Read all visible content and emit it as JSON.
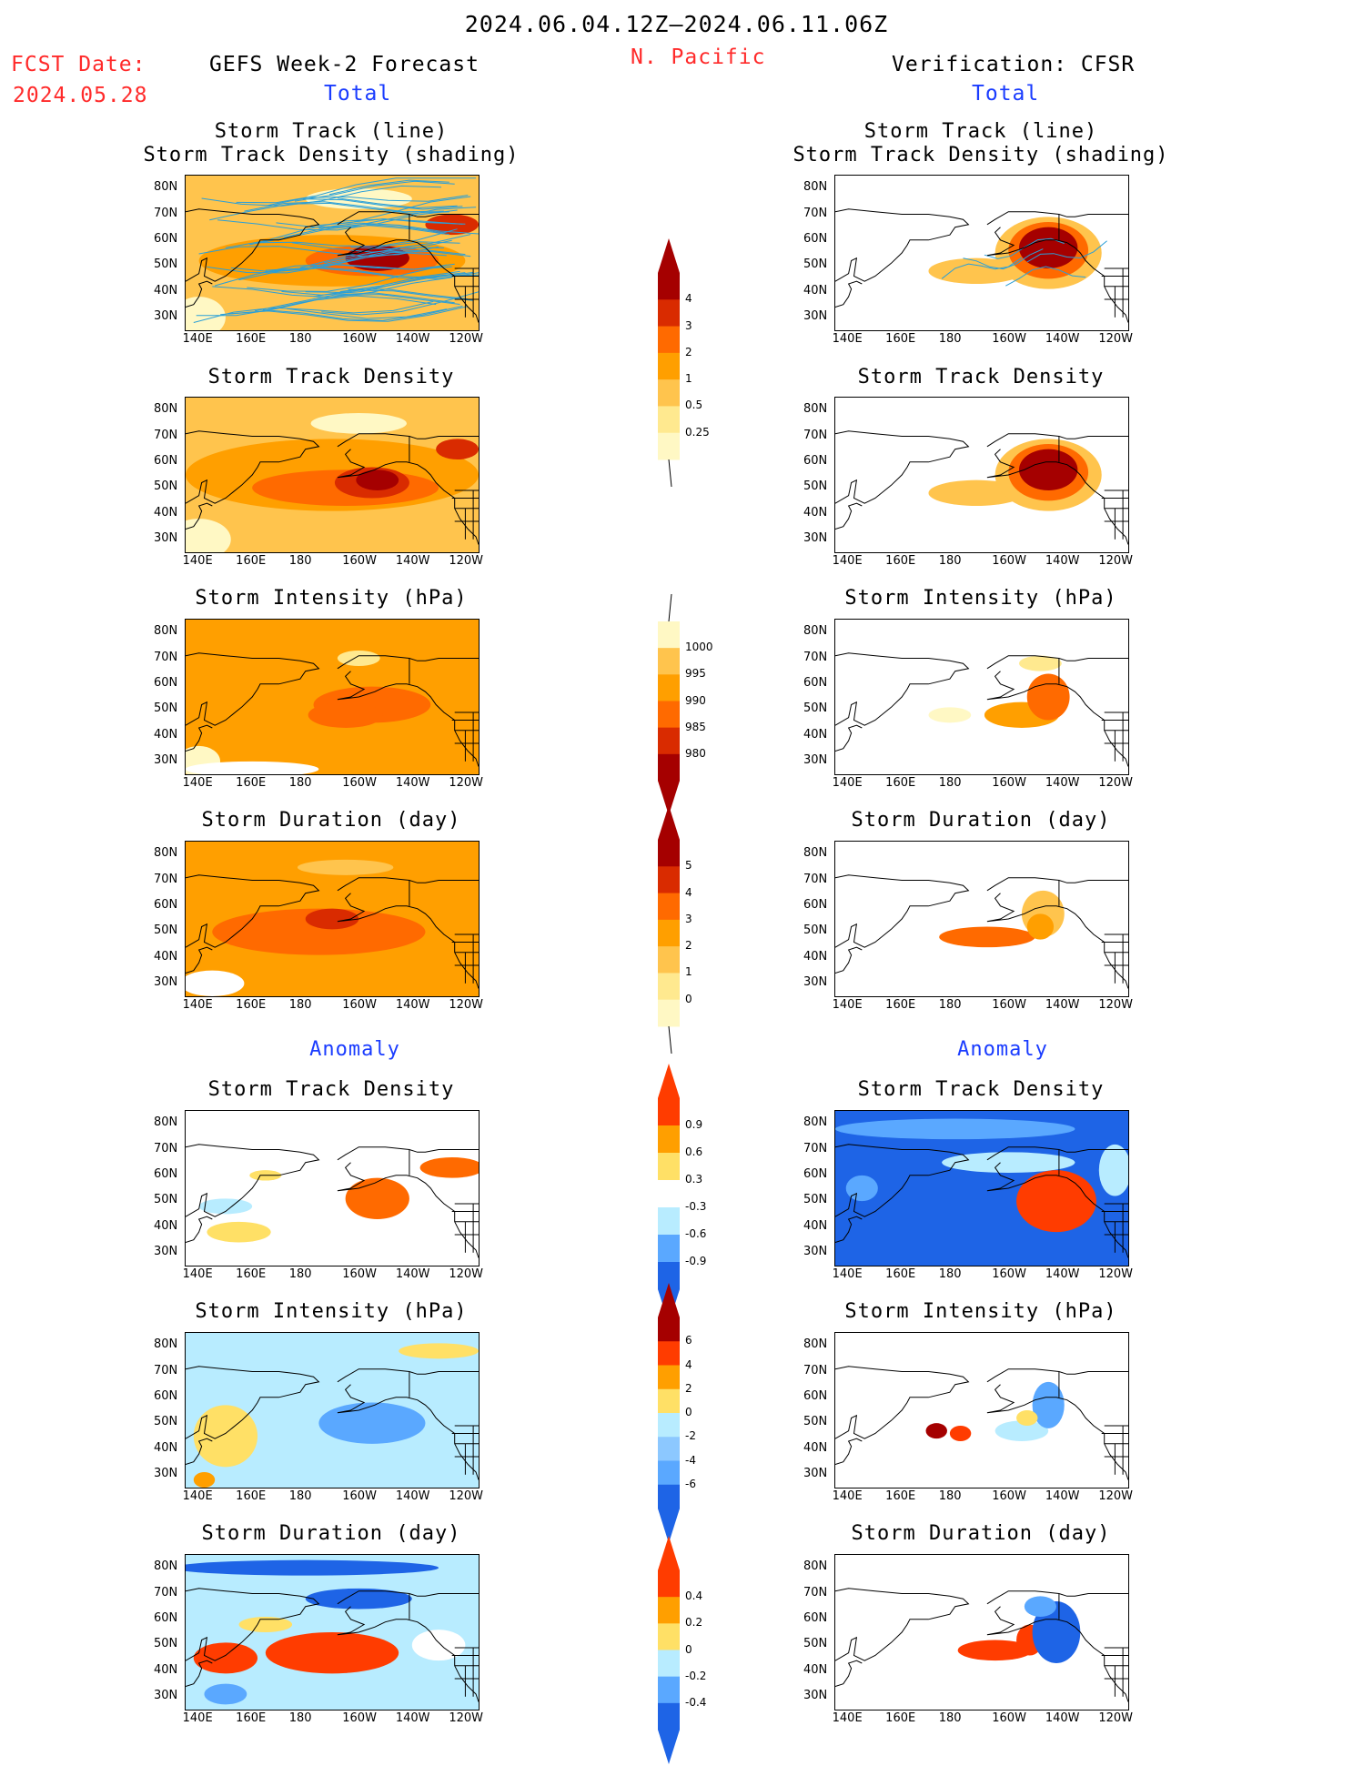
{
  "header": {
    "period": "2024.06.04.12Z—2024.06.11.06Z",
    "region": "N. Pacific",
    "fcst_label": "FCST Date:",
    "fcst_date": "2024.05.28",
    "left_title": "GEFS Week-2 Forecast",
    "right_title": "Verification: CFSR",
    "total_label": "Total",
    "anomaly_label": "Anomaly"
  },
  "axes": {
    "lat_ticks": [
      "80N",
      "70N",
      "60N",
      "50N",
      "40N",
      "30N"
    ],
    "lon_ticks": [
      "140E",
      "160E",
      "180",
      "160W",
      "140W",
      "120W"
    ]
  },
  "panel_titles": {
    "track_line": "Storm Track (line)",
    "track_shading": "Storm Track Density (shading)",
    "density": "Storm Track Density",
    "intensity": "Storm Intensity (hPa)",
    "duration": "Storm Duration (day)"
  },
  "colorbars": {
    "density_total": {
      "labels": [
        "4",
        "3",
        "2",
        "1",
        "0.5",
        "0.25"
      ],
      "colors": [
        "#a50000",
        "#d92b00",
        "#ff6a00",
        "#ff9f00",
        "#ffc44d",
        "#ffe98f",
        "#fff8c4"
      ]
    },
    "intensity_total": {
      "labels": [
        "1000",
        "995",
        "990",
        "985",
        "980"
      ],
      "colors": [
        "#fff8c4",
        "#ffc44d",
        "#ff9f00",
        "#ff6a00",
        "#d92b00",
        "#a50000"
      ]
    },
    "duration_total": {
      "labels": [
        "5",
        "4",
        "3",
        "2",
        "1",
        "0"
      ],
      "colors": [
        "#a50000",
        "#d92b00",
        "#ff6a00",
        "#ff9f00",
        "#ffc44d",
        "#ffe98f",
        "#fff8c4"
      ]
    },
    "density_anom": {
      "labels": [
        "0.9",
        "0.6",
        "0.3",
        "-0.3",
        "-0.6",
        "-0.9"
      ],
      "colors": [
        "#ff3c00",
        "#ff9f00",
        "#ffe066",
        "#ffffff",
        "#b8ecff",
        "#5aa8ff",
        "#1e64e6"
      ]
    },
    "intensity_anom": {
      "labels": [
        "6",
        "4",
        "2",
        "0",
        "-2",
        "-4",
        "-6"
      ],
      "colors": [
        "#a50000",
        "#ff3c00",
        "#ff9f00",
        "#ffe066",
        "#b8ecff",
        "#8cc8ff",
        "#5aa8ff",
        "#1e64e6"
      ]
    },
    "duration_anom": {
      "labels": [
        "0.4",
        "0.2",
        "0",
        "-0.2",
        "-0.4"
      ],
      "colors": [
        "#ff3c00",
        "#ff9f00",
        "#ffe066",
        "#b8ecff",
        "#5aa8ff",
        "#1e64e6"
      ]
    }
  },
  "chart_data": [
    {
      "type": "heatmap",
      "panel": "forecast-total-track",
      "title": "Storm Track (line) Storm Track Density (shading)",
      "units": "",
      "max_region": "Gulf of Alaska ~50N 150W",
      "max_value": 4
    },
    {
      "type": "heatmap",
      "panel": "verification-total-track",
      "title": "Storm Track (line) Storm Track Density (shading)",
      "units": "",
      "max_region": "Gulf of Alaska ~55N 145W",
      "max_value": 4
    },
    {
      "type": "heatmap",
      "panel": "forecast-total-density",
      "title": "Storm Track Density",
      "max_value": 4
    },
    {
      "type": "heatmap",
      "panel": "verification-total-density",
      "title": "Storm Track Density",
      "max_value": 4
    },
    {
      "type": "heatmap",
      "panel": "forecast-total-intensity",
      "title": "Storm Intensity (hPa)",
      "range": [
        985,
        1000
      ]
    },
    {
      "type": "heatmap",
      "panel": "verification-total-intensity",
      "title": "Storm Intensity (hPa)",
      "range": [
        985,
        1000
      ]
    },
    {
      "type": "heatmap",
      "panel": "forecast-total-duration",
      "title": "Storm Duration (day)",
      "range": [
        1,
        4
      ]
    },
    {
      "type": "heatmap",
      "panel": "verification-total-duration",
      "title": "Storm Duration (day)",
      "range": [
        1,
        3
      ]
    },
    {
      "type": "heatmap",
      "panel": "forecast-anomaly-density",
      "title": "Storm Track Density",
      "range": [
        -0.6,
        0.9
      ]
    },
    {
      "type": "heatmap",
      "panel": "verification-anomaly-density",
      "title": "Storm Track Density",
      "range": [
        -0.9,
        0.9
      ]
    },
    {
      "type": "heatmap",
      "panel": "forecast-anomaly-intensity",
      "title": "Storm Intensity (hPa)",
      "range": [
        -4,
        2
      ]
    },
    {
      "type": "heatmap",
      "panel": "verification-anomaly-intensity",
      "title": "Storm Intensity (hPa)",
      "range": [
        -6,
        6
      ]
    },
    {
      "type": "heatmap",
      "panel": "forecast-anomaly-duration",
      "title": "Storm Duration (day)",
      "range": [
        -0.4,
        0.4
      ]
    },
    {
      "type": "heatmap",
      "panel": "verification-anomaly-duration",
      "title": "Storm Duration (day)",
      "range": [
        -0.4,
        0.4
      ]
    }
  ]
}
